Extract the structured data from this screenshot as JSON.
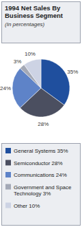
{
  "chart_data": {
    "type": "pie",
    "title": "1994 Net Sales By Business Segment",
    "subtitle": "(In percentages)",
    "categories": [
      "General Systems 35%",
      "Semiconductor 28%",
      "Communications 24%",
      "Government and Space Technology 3%",
      "Other 10%"
    ],
    "values": [
      35,
      28,
      24,
      3,
      10
    ],
    "value_labels": [
      "35%",
      "28%",
      "24%",
      "3%",
      "10%"
    ],
    "colors": [
      "#1f4f9e",
      "#4b4f60",
      "#5e83c8",
      "#a4a9b6",
      "#cdd3e4"
    ],
    "data_labels": true,
    "legend": "bottom"
  }
}
